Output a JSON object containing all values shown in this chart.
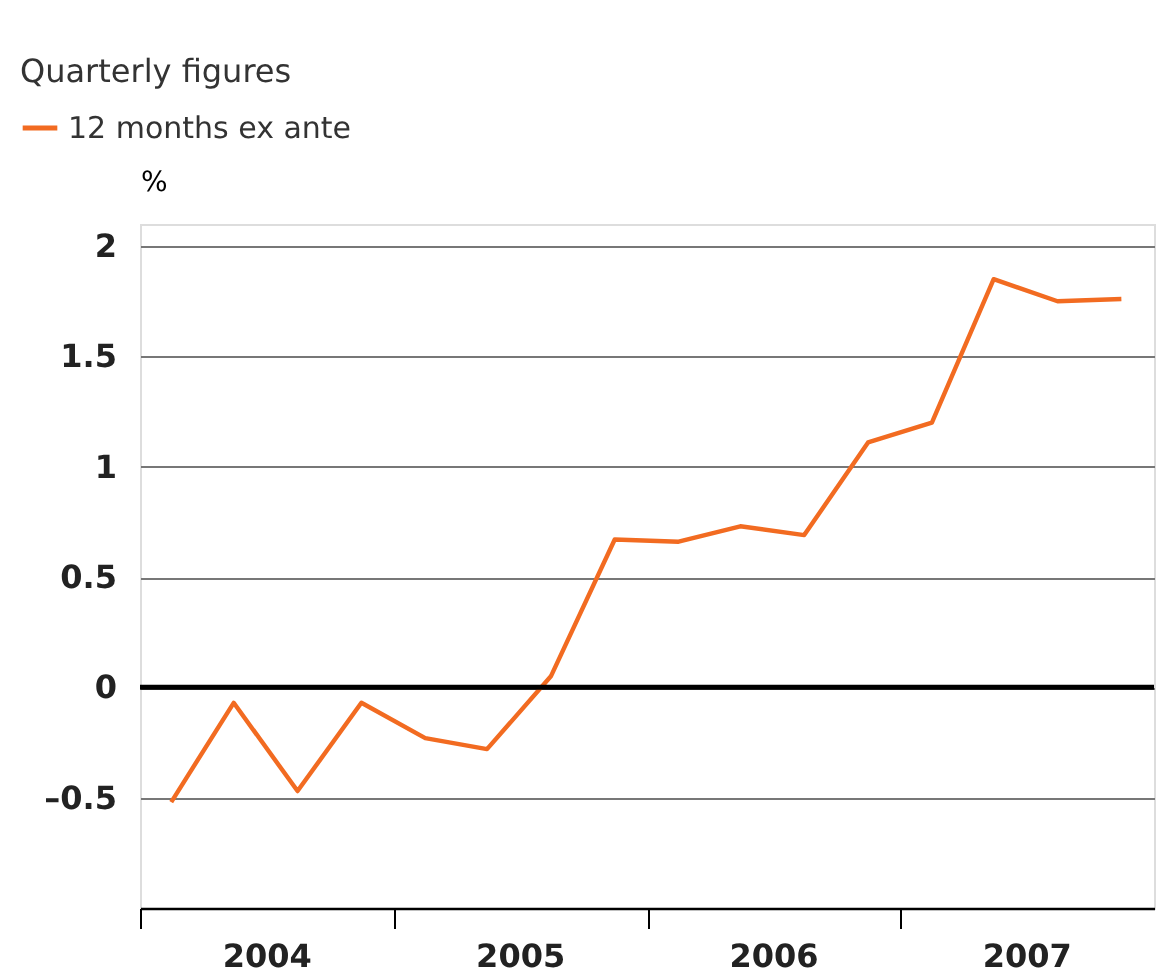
{
  "chart_data": {
    "type": "line",
    "title": "Quarterly figures",
    "ylabel": "%",
    "x": [
      "2004-02-15",
      "2004-05-15",
      "2004-08-15",
      "2004-11-15",
      "2005-02-15",
      "2005-05-15",
      "2005-08-15",
      "2005-11-15",
      "2006-02-15",
      "2006-05-15",
      "2006-08-15",
      "2006-11-15",
      "2007-02-15",
      "2007-05-15",
      "2007-08-15",
      "2007-11-15"
    ],
    "series": [
      {
        "name": "12 months ex ante",
        "color": "#f26b21",
        "values": [
          -0.52,
          -0.07,
          -0.47,
          -0.07,
          -0.23,
          -0.28,
          0.05,
          0.67,
          0.66,
          0.73,
          0.69,
          1.11,
          1.2,
          1.85,
          1.75,
          1.76
        ]
      }
    ],
    "xlim": [
      "2004-01-01",
      "2008-01-01"
    ],
    "xticks": [
      {
        "value": "2004-01-01",
        "label": null
      },
      {
        "value": "2004-07-01",
        "label": "2004"
      },
      {
        "value": "2005-01-01",
        "label": null
      },
      {
        "value": "2005-07-01",
        "label": "2005"
      },
      {
        "value": "2006-01-01",
        "label": null
      },
      {
        "value": "2006-07-01",
        "label": "2006"
      },
      {
        "value": "2007-01-01",
        "label": null
      },
      {
        "value": "2007-07-01",
        "label": "2007"
      }
    ],
    "ylim": [
      -1,
      2.1
    ],
    "yticks": [
      {
        "value": -0.5,
        "label": "–0.5"
      },
      0,
      0.5,
      1,
      1.5,
      2
    ],
    "ref_lines": [
      {
        "axis": "y",
        "value": 0,
        "color": "#000000"
      }
    ],
    "grid": "y",
    "legend": "top left",
    "marker": "none",
    "line_style": "solid"
  }
}
